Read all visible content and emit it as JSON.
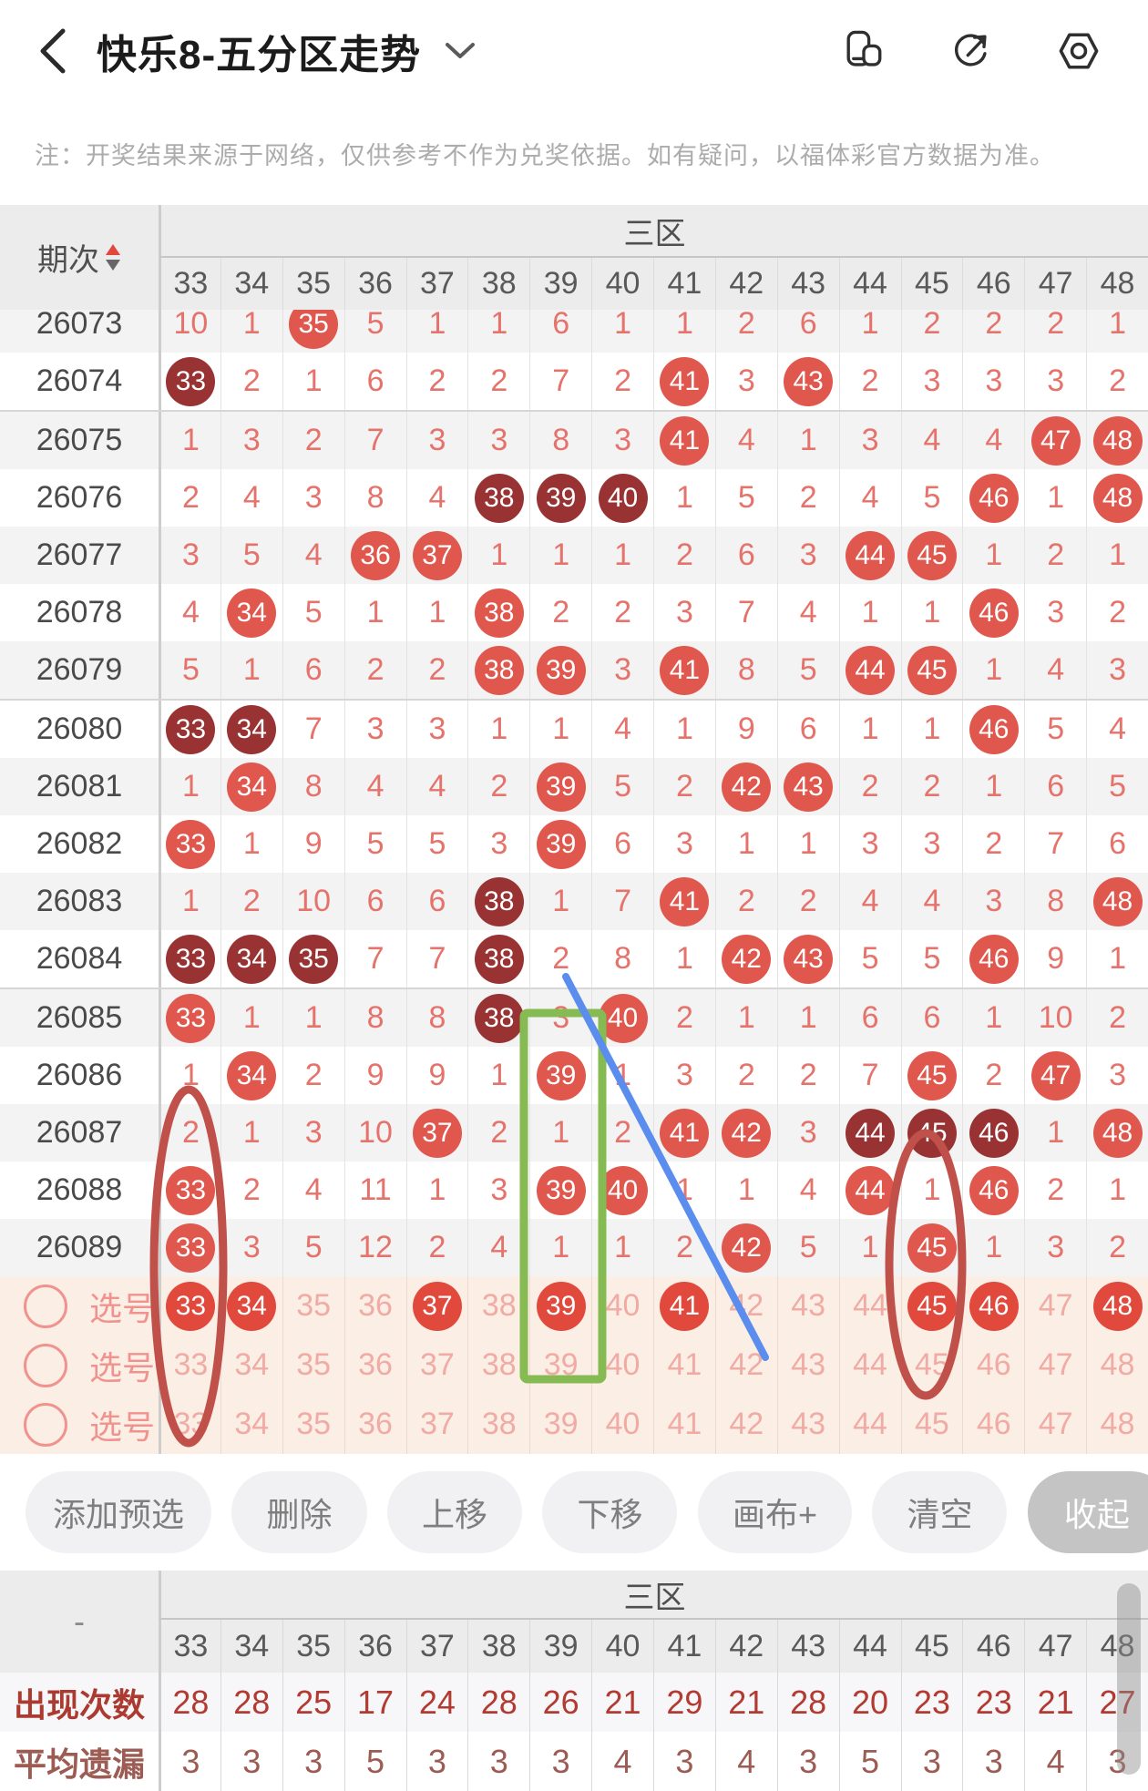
{
  "header": {
    "title": "快乐8-五分区走势",
    "icons": [
      "back-icon",
      "chevron-down-icon",
      "rotate-screen-icon",
      "share-icon",
      "settings-icon"
    ]
  },
  "notice": "注：开奖结果来源于网络，仅供参考不作为兑奖依据。如有疑问，以福体彩官方数据为准。",
  "table": {
    "period_label": "期次",
    "zone_label": "三区",
    "columns": [
      "33",
      "34",
      "35",
      "36",
      "37",
      "38",
      "39",
      "40",
      "41",
      "42",
      "43",
      "44",
      "45",
      "46",
      "47",
      "48"
    ],
    "legend": {
      "hot_ball_color": "#e0574d",
      "repeat_ball_color": "#993333",
      "pick_ball_color": "#e2493d",
      "miss_text_color": "#e5736c"
    },
    "rows": [
      {
        "period": "26073",
        "clipped": true,
        "cells": [
          "10",
          "1",
          "35H",
          "5",
          "1",
          "1",
          "6",
          "1",
          "1",
          "2",
          "6",
          "1",
          "2",
          "2",
          "2",
          "1"
        ]
      },
      {
        "period": "26074",
        "cells": [
          "33D",
          "2",
          "1",
          "6",
          "2",
          "2",
          "7",
          "2",
          "41H",
          "3",
          "43H",
          "2",
          "3",
          "3",
          "3",
          "2"
        ]
      },
      {
        "period": "26075",
        "cells": [
          "1",
          "3",
          "2",
          "7",
          "3",
          "3",
          "8",
          "3",
          "41H",
          "4",
          "1",
          "3",
          "4",
          "4",
          "47H",
          "48H"
        ]
      },
      {
        "period": "26076",
        "cells": [
          "2",
          "4",
          "3",
          "8",
          "4",
          "38D",
          "39D",
          "40D",
          "1",
          "5",
          "2",
          "4",
          "5",
          "46H",
          "1",
          "48H"
        ]
      },
      {
        "period": "26077",
        "cells": [
          "3",
          "5",
          "4",
          "36H",
          "37H",
          "1",
          "1",
          "1",
          "2",
          "6",
          "3",
          "44H",
          "45H",
          "1",
          "2",
          "1"
        ]
      },
      {
        "period": "26078",
        "cells": [
          "4",
          "34H",
          "5",
          "1",
          "1",
          "38H",
          "2",
          "2",
          "3",
          "7",
          "4",
          "1",
          "1",
          "46H",
          "3",
          "2"
        ]
      },
      {
        "period": "26079",
        "cells": [
          "5",
          "1",
          "6",
          "2",
          "2",
          "38H",
          "39H",
          "3",
          "41H",
          "8",
          "5",
          "44H",
          "45H",
          "1",
          "4",
          "3"
        ]
      },
      {
        "period": "26080",
        "cells": [
          "33D",
          "34D",
          "7",
          "3",
          "3",
          "1",
          "1",
          "4",
          "1",
          "9",
          "6",
          "1",
          "1",
          "46H",
          "5",
          "4"
        ]
      },
      {
        "period": "26081",
        "cells": [
          "1",
          "34H",
          "8",
          "4",
          "4",
          "2",
          "39H",
          "5",
          "2",
          "42H",
          "43H",
          "2",
          "2",
          "1",
          "6",
          "5"
        ]
      },
      {
        "period": "26082",
        "cells": [
          "33H",
          "1",
          "9",
          "5",
          "5",
          "3",
          "39H",
          "6",
          "3",
          "1",
          "1",
          "3",
          "3",
          "2",
          "7",
          "6"
        ]
      },
      {
        "period": "26083",
        "cells": [
          "1",
          "2",
          "10",
          "6",
          "6",
          "38D",
          "1",
          "7",
          "41H",
          "2",
          "2",
          "4",
          "4",
          "3",
          "8",
          "48H"
        ]
      },
      {
        "period": "26084",
        "cells": [
          "33D",
          "34D",
          "35D",
          "7",
          "7",
          "38D",
          "2",
          "8",
          "1",
          "42H",
          "43H",
          "5",
          "5",
          "46H",
          "9",
          "1"
        ]
      },
      {
        "period": "26085",
        "cells": [
          "33H",
          "1",
          "1",
          "8",
          "8",
          "38D",
          "3",
          "40H",
          "2",
          "1",
          "1",
          "6",
          "6",
          "1",
          "10",
          "2"
        ]
      },
      {
        "period": "26086",
        "cells": [
          "1",
          "34H",
          "2",
          "9",
          "9",
          "1",
          "39H",
          "1",
          "3",
          "2",
          "2",
          "7",
          "45H",
          "2",
          "47H",
          "3"
        ]
      },
      {
        "period": "26087",
        "cells": [
          "2",
          "1",
          "3",
          "10",
          "37H",
          "2",
          "1",
          "2",
          "41H",
          "42H",
          "3",
          "44D",
          "45D",
          "46D",
          "1",
          "48H"
        ]
      },
      {
        "period": "26088",
        "cells": [
          "33H",
          "2",
          "4",
          "11",
          "1",
          "3",
          "39H",
          "40H",
          "1",
          "1",
          "4",
          "44H",
          "1",
          "46H",
          "2",
          "1"
        ]
      },
      {
        "period": "26089",
        "cells": [
          "33H",
          "3",
          "5",
          "12",
          "2",
          "4",
          "1",
          "1",
          "2",
          "42H",
          "5",
          "1",
          "45H",
          "1",
          "3",
          "2"
        ]
      }
    ],
    "pick_label": "选号",
    "pick_rows": [
      {
        "cells": [
          "33F",
          "34F",
          "35",
          "36",
          "37F",
          "38",
          "39F",
          "40",
          "41F",
          "42",
          "43",
          "44",
          "45F",
          "46F",
          "47",
          "48F"
        ]
      },
      {
        "cells": [
          "33",
          "34",
          "35",
          "36",
          "37",
          "38",
          "39",
          "40",
          "41",
          "42",
          "43",
          "44",
          "45",
          "46",
          "47",
          "48"
        ]
      },
      {
        "cells": [
          "33",
          "34",
          "35",
          "36",
          "37",
          "38",
          "39",
          "40",
          "41",
          "42",
          "43",
          "44",
          "45",
          "46",
          "47",
          "48"
        ]
      }
    ]
  },
  "toolbar": {
    "buttons": [
      {
        "id": "add-preselect",
        "label": "添加预选"
      },
      {
        "id": "delete",
        "label": "删除"
      },
      {
        "id": "move-up",
        "label": "上移"
      },
      {
        "id": "move-down",
        "label": "下移"
      },
      {
        "id": "canvas-plus",
        "label": "画布+"
      },
      {
        "id": "clear",
        "label": "清空"
      },
      {
        "id": "collapse",
        "label": "收起"
      }
    ]
  },
  "stats": {
    "corner_label": "-",
    "zone_label": "三区",
    "columns": [
      "33",
      "34",
      "35",
      "36",
      "37",
      "38",
      "39",
      "40",
      "41",
      "42",
      "43",
      "44",
      "45",
      "46",
      "47",
      "48"
    ],
    "rows": [
      {
        "label": "出现次数",
        "values": [
          "28",
          "28",
          "25",
          "17",
          "24",
          "28",
          "26",
          "21",
          "29",
          "21",
          "28",
          "20",
          "23",
          "23",
          "21",
          "27"
        ]
      },
      {
        "label": "平均遗漏",
        "values": [
          "3",
          "3",
          "3",
          "5",
          "3",
          "3",
          "3",
          "4",
          "3",
          "4",
          "3",
          "5",
          "3",
          "3",
          "4",
          "3"
        ]
      }
    ]
  },
  "annotations": {
    "red_ellipse_color": "#c0504a",
    "green_rect_color": "#85bb52",
    "blue_line_color": "#5a8dee",
    "marked_columns": [
      "33",
      "45",
      "39"
    ]
  }
}
